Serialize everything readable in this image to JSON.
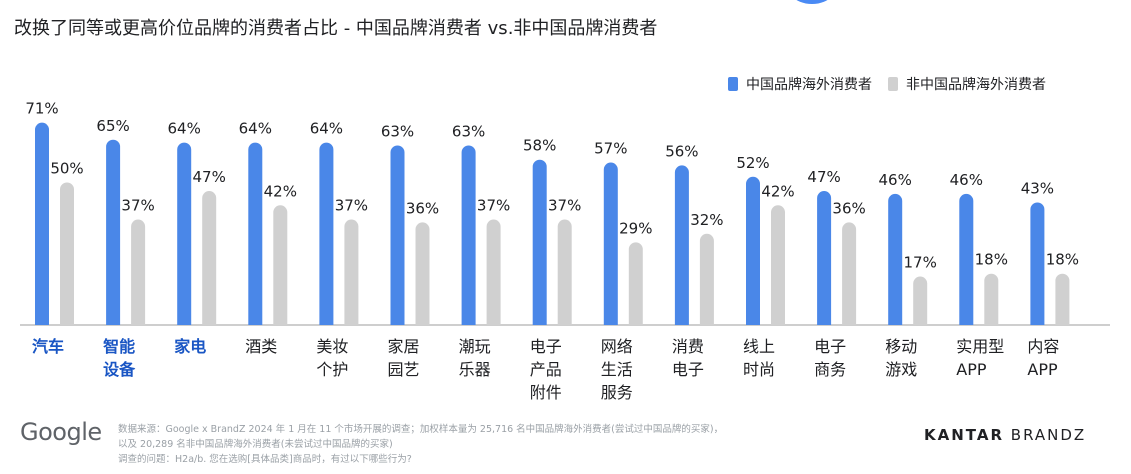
{
  "title": "改换了同等或更高价位品牌的消费者占比 - 中国品牌消费者 vs.非中国品牌消费者",
  "legend": {
    "series1": "中国品牌海外消费者",
    "series2": "非中国品牌海外消费者"
  },
  "colors": {
    "series1": "#4a87e8",
    "series2": "#d0d0d0",
    "highlight": "#1a56c4"
  },
  "chart_data": {
    "type": "bar",
    "title": "改换了同等或更高价位品牌的消费者占比 - 中国品牌消费者 vs.非中国品牌消费者",
    "xlabel": "",
    "ylabel": "",
    "ylim": [
      0,
      80
    ],
    "categories": [
      [
        "汽车"
      ],
      [
        "智能",
        "设备"
      ],
      [
        "家电"
      ],
      [
        "酒类"
      ],
      [
        "美妆",
        "个护"
      ],
      [
        "家居",
        "园艺"
      ],
      [
        "潮玩",
        "乐器"
      ],
      [
        "电子",
        "产品",
        "附件"
      ],
      [
        "网络",
        "生活",
        "服务"
      ],
      [
        "消费",
        "电子"
      ],
      [
        "线上",
        "时尚"
      ],
      [
        "电子",
        "商务"
      ],
      [
        "移动",
        "游戏"
      ],
      [
        "实用型",
        "APP"
      ],
      [
        "内容",
        "APP"
      ]
    ],
    "highlighted_categories": [
      0,
      1,
      2
    ],
    "series": [
      {
        "name": "中国品牌海外消费者",
        "values": [
          71,
          65,
          64,
          64,
          64,
          63,
          63,
          58,
          57,
          56,
          52,
          47,
          46,
          46,
          43
        ]
      },
      {
        "name": "非中国品牌海外消费者",
        "values": [
          50,
          37,
          47,
          42,
          37,
          36,
          37,
          37,
          29,
          32,
          42,
          36,
          17,
          18,
          18
        ]
      }
    ],
    "value_suffix": "%"
  },
  "footer": {
    "logo": "Google",
    "source_lines": [
      "数据来源：Google x BrandZ 2024 年 1 月在 11 个市场开展的调查；加权样本量为 25,716 名中国品牌海外消费者(尝试过中国品牌的买家)，",
      "以及 20,289 名非中国品牌海外消费者(未尝试过中国品牌的买家)",
      "调查的问题：H2a/b. 您在选购[具体品类]商品时，有过以下哪些行为?"
    ],
    "brand_bold": "KANTAR",
    "brand_light": "BRANDZ"
  }
}
